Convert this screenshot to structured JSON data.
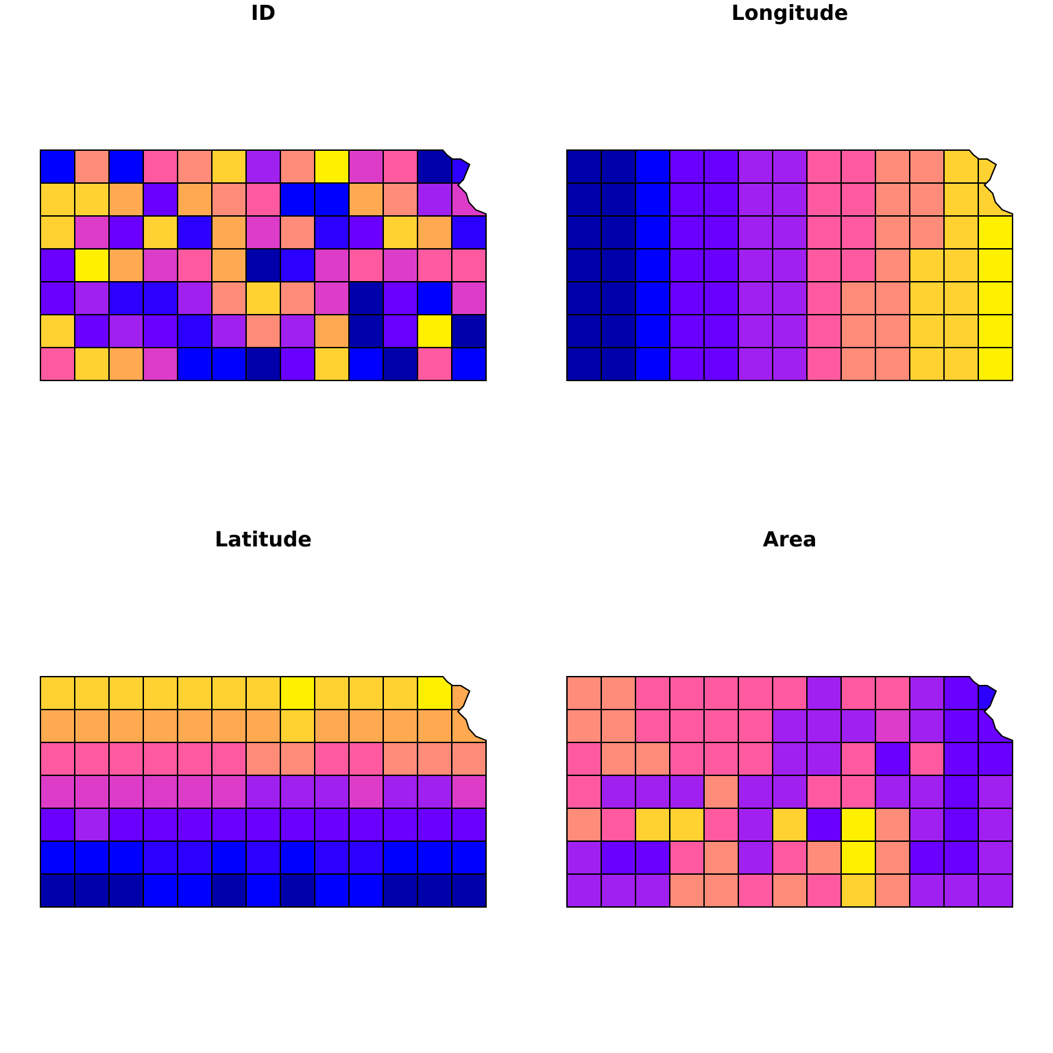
{
  "palette": [
    "#0000aa",
    "#0000ff",
    "#2b00ff",
    "#6a00ff",
    "#a020f0",
    "#dc3cc8",
    "#ff5aa0",
    "#ff8c78",
    "#ffaa50",
    "#ffd232",
    "#fff000"
  ],
  "panels": [
    {
      "id": "id",
      "title": "ID",
      "field": "ID",
      "grid": [
        [
          1,
          7,
          1,
          6,
          7,
          9,
          4,
          7,
          10,
          5,
          6,
          0,
          2
        ],
        [
          9,
          9,
          8,
          3,
          8,
          7,
          6,
          1,
          1,
          8,
          7,
          4,
          5
        ],
        [
          9,
          5,
          3,
          9,
          2,
          8,
          5,
          7,
          2,
          3,
          9,
          8,
          2
        ],
        [
          3,
          10,
          8,
          5,
          6,
          8,
          0,
          2,
          5,
          6,
          5,
          6,
          6
        ],
        [
          3,
          4,
          2,
          2,
          4,
          7,
          9,
          7,
          5,
          0,
          3,
          1,
          5
        ],
        [
          9,
          3,
          4,
          3,
          2,
          4,
          7,
          4,
          8,
          0,
          3,
          10,
          0
        ],
        [
          6,
          9,
          8,
          5,
          1,
          1,
          0,
          3,
          9,
          1,
          0,
          6,
          1
        ]
      ]
    },
    {
      "id": "longitude",
      "title": "Longitude",
      "field": "Longitude",
      "grid": [
        [
          0,
          0,
          1,
          3,
          3,
          4,
          4,
          6,
          6,
          7,
          7,
          9,
          9
        ],
        [
          0,
          0,
          1,
          3,
          3,
          4,
          4,
          6,
          6,
          7,
          7,
          9,
          9
        ],
        [
          0,
          0,
          1,
          3,
          3,
          4,
          4,
          6,
          6,
          7,
          7,
          9,
          10
        ],
        [
          0,
          0,
          1,
          3,
          3,
          4,
          4,
          6,
          6,
          7,
          9,
          9,
          10
        ],
        [
          0,
          0,
          1,
          3,
          3,
          4,
          4,
          6,
          7,
          7,
          9,
          9,
          10
        ],
        [
          0,
          0,
          1,
          3,
          3,
          4,
          4,
          6,
          7,
          7,
          9,
          9,
          10
        ],
        [
          0,
          0,
          1,
          3,
          3,
          4,
          4,
          6,
          7,
          7,
          9,
          9,
          10
        ]
      ]
    },
    {
      "id": "latitude",
      "title": "Latitude",
      "field": "Latitude",
      "grid": [
        [
          9,
          9,
          9,
          9,
          9,
          9,
          9,
          10,
          9,
          9,
          9,
          10,
          8
        ],
        [
          8,
          8,
          8,
          8,
          8,
          8,
          8,
          9,
          8,
          8,
          8,
          8,
          8
        ],
        [
          6,
          6,
          6,
          6,
          6,
          6,
          7,
          7,
          6,
          6,
          7,
          7,
          7
        ],
        [
          5,
          5,
          5,
          5,
          5,
          5,
          4,
          4,
          4,
          5,
          4,
          4,
          5
        ],
        [
          3,
          4,
          3,
          3,
          3,
          3,
          3,
          3,
          3,
          3,
          3,
          3,
          3
        ],
        [
          1,
          1,
          1,
          2,
          2,
          1,
          2,
          1,
          2,
          2,
          1,
          1,
          1
        ],
        [
          0,
          0,
          0,
          1,
          1,
          0,
          1,
          0,
          1,
          1,
          0,
          0,
          0
        ]
      ]
    },
    {
      "id": "area",
      "title": "Area",
      "field": "Area",
      "grid": [
        [
          7,
          7,
          6,
          6,
          6,
          6,
          6,
          4,
          6,
          6,
          4,
          3,
          2
        ],
        [
          7,
          7,
          6,
          6,
          6,
          6,
          4,
          4,
          4,
          5,
          4,
          3,
          3
        ],
        [
          6,
          7,
          7,
          6,
          6,
          6,
          4,
          4,
          6,
          3,
          6,
          3,
          3
        ],
        [
          6,
          4,
          4,
          4,
          7,
          4,
          4,
          6,
          6,
          4,
          4,
          3,
          4
        ],
        [
          7,
          6,
          9,
          9,
          6,
          4,
          9,
          3,
          10,
          7,
          4,
          3,
          4
        ],
        [
          4,
          3,
          3,
          6,
          7,
          4,
          6,
          7,
          10,
          7,
          3,
          3,
          4
        ],
        [
          4,
          4,
          4,
          7,
          7,
          6,
          7,
          6,
          9,
          7,
          4,
          4,
          4
        ]
      ]
    }
  ]
}
